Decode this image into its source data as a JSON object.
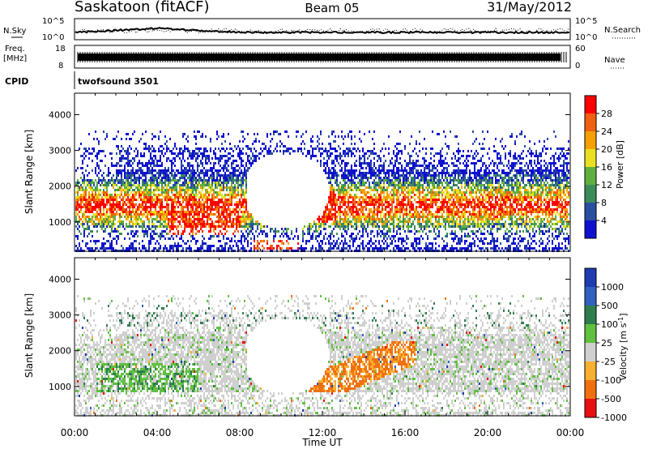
{
  "header": {
    "station": "Saskatoon (fitACF)",
    "beam": "Beam 05",
    "date": "31/May/2012"
  },
  "summary": {
    "left_labels": [
      "N.Sky",
      "Freq.",
      "[MHz]",
      "CPID"
    ],
    "right_labels": [
      "N.Search",
      "Nave"
    ],
    "nsky_ticks": [
      "10^5",
      "10^0"
    ],
    "freq_ticks": [
      "18",
      "8"
    ],
    "nave_ticks": [
      "60",
      "0"
    ],
    "cpid_text": "twofsound 3501"
  },
  "chart_data": [
    {
      "type": "heatmap",
      "quantity": "Power",
      "ylabel": "Slant Range [km]",
      "xlabel": "Time UT",
      "ylim": [
        180,
        4600
      ],
      "xlim": [
        "00:00",
        "24:00"
      ],
      "y_ticks": [
        1000,
        2000,
        3000,
        4000
      ],
      "colorbar_label": "Power [dB]",
      "colorbar_ticks": [
        "28",
        "24",
        "20",
        "16",
        "12",
        "8",
        "4"
      ],
      "colorbar_colors": [
        "#ff0000",
        "#f06010",
        "#f5a000",
        "#e8e020",
        "#60b040",
        "#3a8c5a",
        "#2a4ea0",
        "#1010d0"
      ]
    },
    {
      "type": "heatmap",
      "quantity": "Velocity",
      "ylabel": "Slant Range [km]",
      "xlabel": "Time UT",
      "ylim": [
        180,
        4600
      ],
      "xlim": [
        "00:00",
        "24:00"
      ],
      "y_ticks": [
        1000,
        2000,
        3000,
        4000
      ],
      "x_ticks": [
        "00:00",
        "04:00",
        "08:00",
        "12:00",
        "16:00",
        "20:00",
        "00:00"
      ],
      "colorbar_label": "Velocity [m s",
      "colorbar_label_sup": "-1",
      "colorbar_label_end": "]",
      "colorbar_ticks": [
        "1000",
        "500",
        "100",
        "25",
        "-25",
        "-100",
        "-500",
        "-1000"
      ],
      "colorbar_colors": [
        "#1f3bb0",
        "#3060c0",
        "#2e7d4f",
        "#60c040",
        "#cfcfcf",
        "#f7b030",
        "#f07010",
        "#e81010"
      ]
    }
  ]
}
